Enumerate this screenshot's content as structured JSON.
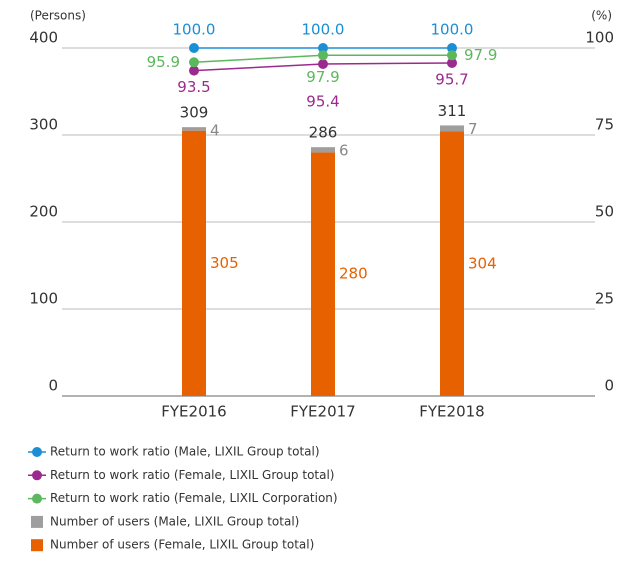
{
  "chart_data": {
    "type": "bar",
    "ylabel": "(Persons)",
    "y2label": "(%)",
    "categories": [
      "FYE2016",
      "FYE2017",
      "FYE2018"
    ],
    "ylim": [
      0,
      400
    ],
    "yticks": [
      0,
      100,
      200,
      300,
      400
    ],
    "y2lim": [
      0,
      100
    ],
    "y2ticks": [
      0,
      25,
      50,
      75,
      100
    ],
    "grid": true,
    "stacked": true,
    "totals": [
      309,
      286,
      311
    ],
    "series": [
      {
        "name": "Return to work ratio (Male, LIXIL Group total)",
        "kind": "line",
        "axis": "y2",
        "color": "#1a8fd6",
        "values": [
          100,
          100,
          100
        ],
        "value_labels": [
          "100.0",
          "100.0",
          "100.0"
        ]
      },
      {
        "name": "Return to work ratio (Female, LIXIL Group total)",
        "kind": "line",
        "axis": "y2",
        "color": "#9b2a8e",
        "values": [
          93.5,
          95.4,
          95.7
        ]
      },
      {
        "name": "Return to work ratio (Female, LIXIL Corporation)",
        "kind": "line",
        "axis": "y2",
        "color": "#5cb85c",
        "values": [
          95.9,
          97.9,
          97.9
        ]
      },
      {
        "name": "Number of users (Male, LIXIL Group total)",
        "kind": "bar",
        "color": "#9e9e9e",
        "values": [
          4,
          6,
          7
        ]
      },
      {
        "name": "Number of users (Female, LIXIL Group total)",
        "kind": "bar",
        "color": "#e86100",
        "values": [
          305,
          280,
          304
        ]
      }
    ]
  }
}
